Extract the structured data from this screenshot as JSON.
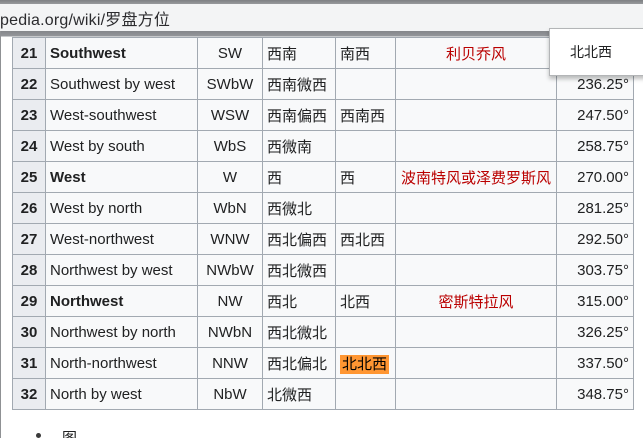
{
  "browser": {
    "url_visible": "pedia.org/wiki/罗盘方位"
  },
  "popup": {
    "item_text": "北北西"
  },
  "table": {
    "rows": [
      {
        "num": "21",
        "name": "Southwest",
        "bold": true,
        "abbr": "SW",
        "cn": "西南",
        "cn_alt": "南西",
        "wind": "利贝乔风",
        "deg": "",
        "highlight": false
      },
      {
        "num": "22",
        "name": "Southwest by west",
        "bold": false,
        "abbr": "SWbW",
        "cn": "西南微西",
        "cn_alt": "",
        "wind": "",
        "deg": "236.25°",
        "highlight": false
      },
      {
        "num": "23",
        "name": "West-southwest",
        "bold": false,
        "abbr": "WSW",
        "cn": "西南偏西",
        "cn_alt": "西南西",
        "wind": "",
        "deg": "247.50°",
        "highlight": false
      },
      {
        "num": "24",
        "name": "West by south",
        "bold": false,
        "abbr": "WbS",
        "cn": "西微南",
        "cn_alt": "",
        "wind": "",
        "deg": "258.75°",
        "highlight": false
      },
      {
        "num": "25",
        "name": "West",
        "bold": true,
        "abbr": "W",
        "cn": "西",
        "cn_alt": "西",
        "wind": "波南特风或泽费罗斯风",
        "deg": "270.00°",
        "highlight": false
      },
      {
        "num": "26",
        "name": "West by north",
        "bold": false,
        "abbr": "WbN",
        "cn": "西微北",
        "cn_alt": "",
        "wind": "",
        "deg": "281.25°",
        "highlight": false
      },
      {
        "num": "27",
        "name": "West-northwest",
        "bold": false,
        "abbr": "WNW",
        "cn": "西北偏西",
        "cn_alt": "西北西",
        "wind": "",
        "deg": "292.50°",
        "highlight": false
      },
      {
        "num": "28",
        "name": "Northwest by west",
        "bold": false,
        "abbr": "NWbW",
        "cn": "西北微西",
        "cn_alt": "",
        "wind": "",
        "deg": "303.75°",
        "highlight": false
      },
      {
        "num": "29",
        "name": "Northwest",
        "bold": true,
        "abbr": "NW",
        "cn": "西北",
        "cn_alt": "北西",
        "wind": "密斯特拉风",
        "deg": "315.00°",
        "highlight": false
      },
      {
        "num": "30",
        "name": "Northwest by north",
        "bold": false,
        "abbr": "NWbN",
        "cn": "西北微北",
        "cn_alt": "",
        "wind": "",
        "deg": "326.25°",
        "highlight": false
      },
      {
        "num": "31",
        "name": "North-northwest",
        "bold": false,
        "abbr": "NNW",
        "cn": "西北偏北",
        "cn_alt": "北北西",
        "wind": "",
        "deg": "337.50°",
        "highlight": true
      },
      {
        "num": "32",
        "name": "North by west",
        "bold": false,
        "abbr": "NbW",
        "cn": "北微西",
        "cn_alt": "",
        "wind": "",
        "deg": "348.75°",
        "highlight": false
      }
    ]
  },
  "page_bottom": {
    "partial_list_char": "图"
  },
  "colors": {
    "red_link": "#ba0000",
    "find_highlight": "#ff9632",
    "table_border": "#a2a9b1",
    "header_cell_bg": "#eaecf0",
    "table_bg": "#f8f9fa"
  }
}
